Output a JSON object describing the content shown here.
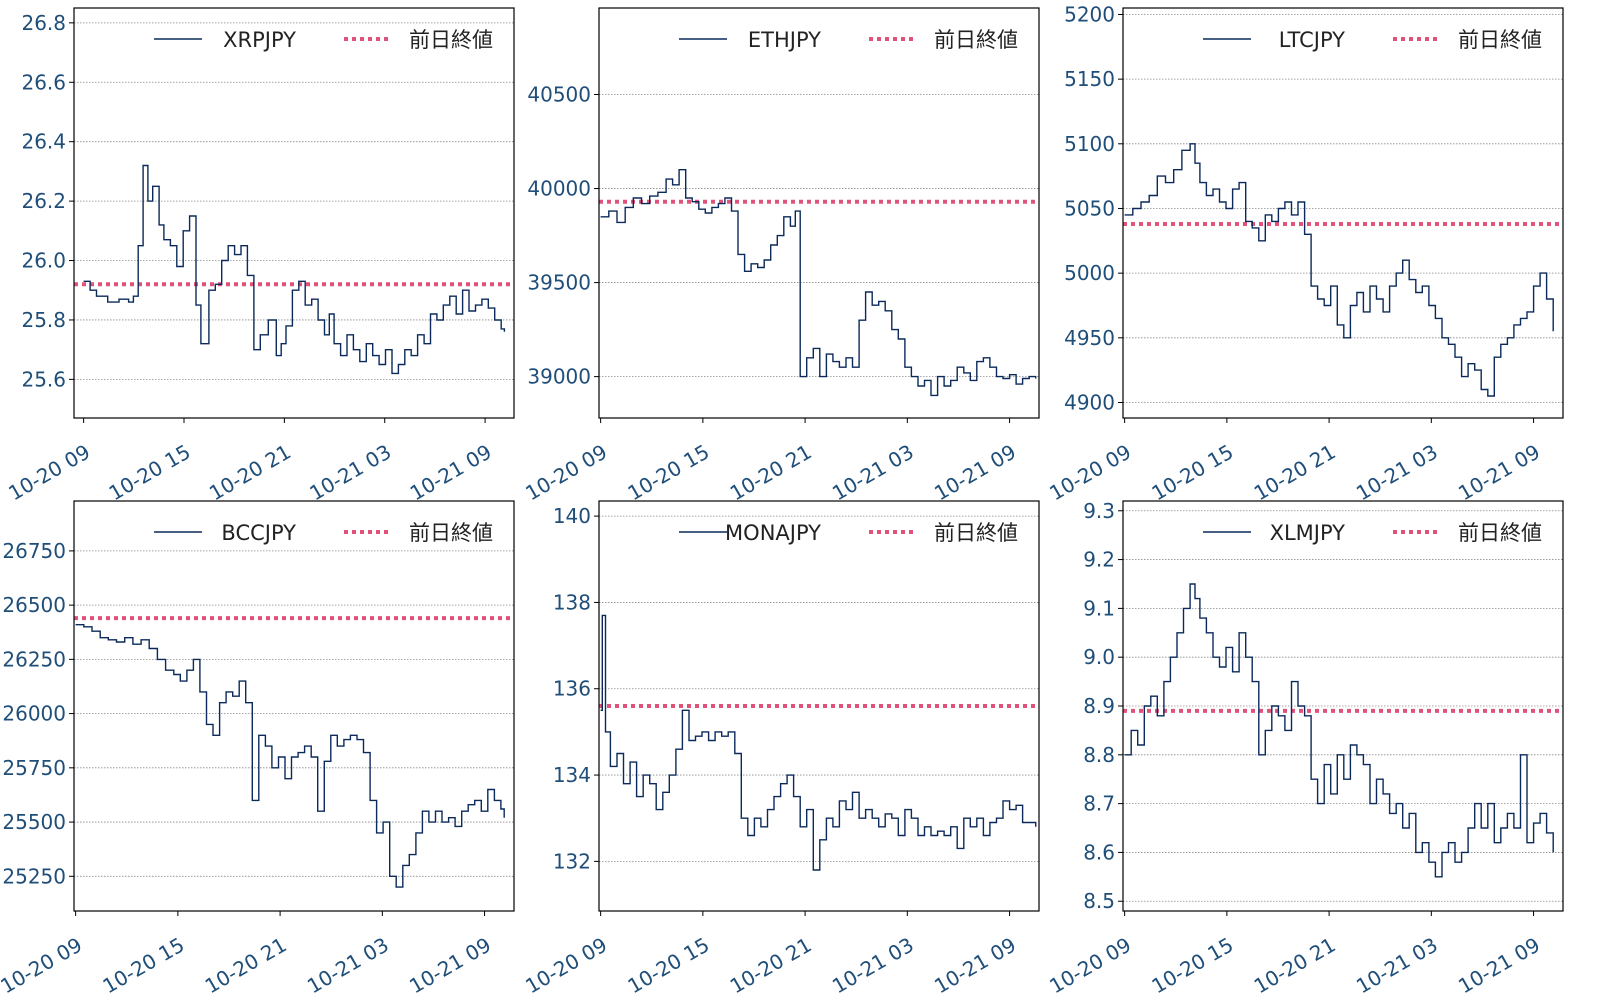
{
  "colors": {
    "series": "#0b2a5b",
    "reference": "#e0527a",
    "grid": "#8a8a8a",
    "tick_text": "#1f4e79",
    "axis": "#000000"
  },
  "chart_data": [
    {
      "type": "line",
      "legend_position": "top-right",
      "grid": "horizontal-dotted",
      "x_ticks": [
        "10-20 09",
        "10-20 15",
        "10-20 21",
        "10-21 03",
        "10-21 09"
      ],
      "xlim": [
        -0.6,
        26.8
      ],
      "ylim": [
        25.47,
        26.85
      ],
      "y_ticks": [
        "25.6",
        "25.8",
        "26.0",
        "26.2",
        "26.4",
        "26.6",
        "26.8"
      ],
      "y_tick_values": [
        25.6,
        25.8,
        26.0,
        26.2,
        26.4,
        26.6,
        26.8
      ],
      "series": [
        {
          "name": "XRPJPY",
          "style": "solid",
          "x": [
            0,
            0.4,
            0.8,
            1.5,
            2.2,
            2.8,
            3.1,
            3.4,
            3.7,
            4.0,
            4.3,
            4.7,
            5.0,
            5.4,
            5.8,
            6.2,
            6.6,
            7.0,
            7.3,
            7.8,
            8.2,
            8.6,
            9.0,
            9.4,
            9.8,
            10.2,
            10.6,
            11.0,
            11.5,
            12.0,
            12.3,
            12.6,
            13.0,
            13.4,
            13.8,
            14.2,
            14.6,
            15.0,
            15.3,
            15.6,
            16.0,
            16.4,
            16.8,
            17.2,
            17.6,
            18.0,
            18.4,
            18.8,
            19.2,
            19.6,
            20.0,
            20.4,
            20.8,
            21.2,
            21.6,
            22.0,
            22.4,
            22.8,
            23.2,
            23.6,
            24.0,
            24.4,
            24.8,
            25.2,
            25.6,
            26.0,
            26.2
          ],
          "y": [
            25.93,
            25.9,
            25.88,
            25.86,
            25.87,
            25.86,
            25.88,
            26.05,
            26.32,
            26.2,
            26.25,
            26.12,
            26.07,
            26.05,
            25.98,
            26.1,
            26.15,
            25.85,
            25.72,
            25.9,
            25.92,
            26.0,
            26.05,
            26.02,
            26.05,
            25.95,
            25.7,
            25.75,
            25.8,
            25.68,
            25.72,
            25.78,
            25.9,
            25.93,
            25.85,
            25.87,
            25.8,
            25.75,
            25.82,
            25.72,
            25.68,
            25.75,
            25.7,
            25.66,
            25.72,
            25.68,
            25.65,
            25.7,
            25.62,
            25.65,
            25.7,
            25.68,
            25.75,
            25.72,
            25.82,
            25.8,
            25.85,
            25.88,
            25.82,
            25.9,
            25.83,
            25.85,
            25.87,
            25.84,
            25.8,
            25.77,
            25.76
          ]
        },
        {
          "name": "前日終値",
          "style": "dotted",
          "y": 25.92
        }
      ]
    },
    {
      "type": "line",
      "legend_position": "top-right",
      "grid": "horizontal-dotted",
      "x_ticks": [
        "10-20 09",
        "10-20 15",
        "10-20 21",
        "10-21 03",
        "10-21 09"
      ],
      "xlim": [
        -0.1,
        26.8
      ],
      "ylim": [
        38780,
        40960
      ],
      "y_ticks": [
        "39000",
        "39500",
        "40000",
        "40500"
      ],
      "y_tick_values": [
        39000,
        39500,
        40000,
        40500
      ],
      "series": [
        {
          "name": "ETHJPY",
          "style": "solid",
          "x": [
            0,
            0.5,
            1.0,
            1.5,
            2.0,
            2.5,
            3.0,
            3.5,
            4.0,
            4.4,
            4.8,
            5.2,
            5.6,
            6.0,
            6.4,
            6.8,
            7.2,
            7.6,
            8.0,
            8.4,
            8.8,
            9.2,
            9.6,
            10.0,
            10.4,
            10.8,
            11.2,
            11.6,
            11.9,
            12.2,
            12.6,
            13.0,
            13.4,
            13.8,
            14.2,
            14.6,
            15.0,
            15.4,
            15.8,
            16.2,
            16.6,
            17.0,
            17.4,
            17.8,
            18.2,
            18.6,
            19.0,
            19.4,
            19.8,
            20.2,
            20.6,
            21.0,
            21.4,
            21.8,
            22.2,
            22.6,
            23.0,
            23.4,
            23.8,
            24.2,
            24.6,
            25.0,
            25.4,
            25.8,
            26.2,
            26.6
          ],
          "y": [
            39850,
            39880,
            39820,
            39900,
            39950,
            39920,
            39960,
            39980,
            40050,
            40020,
            40100,
            39950,
            39930,
            39890,
            39870,
            39900,
            39920,
            39950,
            39880,
            39650,
            39560,
            39600,
            39580,
            39620,
            39700,
            39750,
            39850,
            39800,
            39880,
            39000,
            39100,
            39150,
            39000,
            39120,
            39080,
            39050,
            39100,
            39050,
            39300,
            39450,
            39380,
            39400,
            39350,
            39250,
            39200,
            39050,
            39000,
            38950,
            38980,
            38900,
            39000,
            38950,
            38980,
            39050,
            39020,
            38980,
            39080,
            39100,
            39050,
            39000,
            38990,
            39010,
            38960,
            38990,
            39000,
            38990
          ]
        },
        {
          "name": "前日終値",
          "style": "dotted",
          "y": 39930
        }
      ]
    },
    {
      "type": "line",
      "legend_position": "top-right",
      "grid": "horizontal-dotted",
      "x_ticks": [
        "10-20 09",
        "10-20 15",
        "10-20 21",
        "10-21 03",
        "10-21 09"
      ],
      "xlim": [
        -0.1,
        26.8
      ],
      "ylim": [
        4888,
        5205
      ],
      "y_ticks": [
        "4900",
        "4950",
        "5000",
        "5050",
        "5100",
        "5150",
        "5200"
      ],
      "y_tick_values": [
        4900,
        4950,
        5000,
        5050,
        5100,
        5150,
        5200
      ],
      "series": [
        {
          "name": "LTCJPY",
          "style": "solid",
          "x": [
            0,
            0.5,
            1.0,
            1.5,
            2.0,
            2.5,
            3.0,
            3.5,
            4.0,
            4.3,
            4.6,
            5.0,
            5.4,
            5.8,
            6.2,
            6.6,
            7.0,
            7.4,
            7.8,
            8.2,
            8.6,
            9.0,
            9.4,
            9.8,
            10.2,
            10.6,
            11.0,
            11.4,
            11.8,
            12.2,
            12.6,
            13.0,
            13.4,
            13.8,
            14.2,
            14.6,
            15.0,
            15.4,
            15.8,
            16.2,
            16.6,
            17.0,
            17.4,
            17.8,
            18.2,
            18.6,
            19.0,
            19.4,
            19.8,
            20.2,
            20.6,
            21.0,
            21.4,
            21.8,
            22.2,
            22.6,
            23.0,
            23.4,
            23.8,
            24.2,
            24.6,
            25.0,
            25.4,
            25.8,
            26.2
          ],
          "y": [
            5045,
            5050,
            5055,
            5060,
            5075,
            5070,
            5080,
            5095,
            5100,
            5085,
            5070,
            5060,
            5065,
            5055,
            5050,
            5065,
            5070,
            5040,
            5035,
            5025,
            5045,
            5040,
            5050,
            5055,
            5045,
            5055,
            5030,
            4990,
            4980,
            4975,
            4990,
            4960,
            4950,
            4975,
            4985,
            4970,
            4990,
            4980,
            4970,
            4990,
            5000,
            5010,
            4995,
            4985,
            4990,
            4975,
            4965,
            4950,
            4945,
            4935,
            4920,
            4930,
            4925,
            4910,
            4905,
            4935,
            4945,
            4950,
            4960,
            4965,
            4970,
            4990,
            5000,
            4980,
            4955
          ]
        },
        {
          "name": "前日終値",
          "style": "dotted",
          "y": 5038
        }
      ]
    },
    {
      "type": "line",
      "legend_position": "top-right",
      "grid": "horizontal-dotted",
      "x_ticks": [
        "10-20 09",
        "10-20 15",
        "10-20 21",
        "10-21 03",
        "10-21 09"
      ],
      "xlim": [
        -0.1,
        26.8
      ],
      "ylim": [
        25090,
        26980
      ],
      "y_ticks": [
        "25250",
        "25500",
        "25750",
        "26000",
        "26250",
        "26500",
        "26750"
      ],
      "y_tick_values": [
        25250,
        25500,
        25750,
        26000,
        26250,
        26500,
        26750
      ],
      "series": [
        {
          "name": "BCCJPY",
          "style": "solid",
          "x": [
            0,
            0.5,
            1.0,
            1.5,
            2.0,
            2.5,
            3.0,
            3.5,
            4.0,
            4.5,
            5.0,
            5.5,
            6.0,
            6.4,
            6.8,
            7.2,
            7.6,
            8.0,
            8.4,
            8.8,
            9.2,
            9.6,
            10.0,
            10.4,
            10.8,
            11.2,
            11.6,
            12.0,
            12.4,
            12.8,
            13.2,
            13.6,
            14.0,
            14.4,
            14.8,
            15.2,
            15.6,
            16.0,
            16.4,
            16.8,
            17.2,
            17.6,
            18.0,
            18.4,
            18.8,
            19.2,
            19.6,
            20.0,
            20.4,
            20.8,
            21.2,
            21.6,
            22.0,
            22.4,
            22.8,
            23.2,
            23.6,
            24.0,
            24.4,
            24.8,
            25.2,
            25.6,
            26.0,
            26.2
          ],
          "y": [
            26410,
            26400,
            26380,
            26350,
            26340,
            26330,
            26350,
            26320,
            26340,
            26300,
            26250,
            26200,
            26180,
            26150,
            26200,
            26250,
            26100,
            25950,
            25900,
            26050,
            26100,
            26080,
            26150,
            26050,
            25600,
            25900,
            25850,
            25750,
            25800,
            25700,
            25800,
            25820,
            25850,
            25800,
            25550,
            25780,
            25900,
            25850,
            25880,
            25900,
            25880,
            25820,
            25600,
            25450,
            25500,
            25250,
            25200,
            25300,
            25350,
            25450,
            25550,
            25500,
            25550,
            25500,
            25520,
            25480,
            25550,
            25580,
            25600,
            25550,
            25650,
            25600,
            25560,
            25520
          ]
        },
        {
          "name": "前日終値",
          "style": "dotted",
          "y": 26440
        }
      ]
    },
    {
      "type": "line",
      "legend_position": "top-right",
      "grid": "horizontal-dotted",
      "x_ticks": [
        "10-20 09",
        "10-20 15",
        "10-20 21",
        "10-21 03",
        "10-21 09"
      ],
      "xlim": [
        -0.1,
        26.8
      ],
      "ylim": [
        130.85,
        140.35
      ],
      "y_ticks": [
        "132",
        "134",
        "136",
        "138",
        "140"
      ],
      "y_tick_values": [
        132,
        134,
        136,
        138,
        140
      ],
      "series": [
        {
          "name": "MONAJPY",
          "style": "solid",
          "x": [
            0,
            0.1,
            0.3,
            0.6,
            1.0,
            1.4,
            1.8,
            2.2,
            2.6,
            3.0,
            3.4,
            3.8,
            4.2,
            4.6,
            5.0,
            5.4,
            5.8,
            6.2,
            6.6,
            7.0,
            7.4,
            7.8,
            8.2,
            8.6,
            9.0,
            9.4,
            9.8,
            10.2,
            10.6,
            11.0,
            11.4,
            11.8,
            12.2,
            12.6,
            13.0,
            13.4,
            13.8,
            14.2,
            14.6,
            15.0,
            15.4,
            15.8,
            16.2,
            16.6,
            17.0,
            17.4,
            17.8,
            18.2,
            18.6,
            19.0,
            19.4,
            19.8,
            20.2,
            20.6,
            21.0,
            21.4,
            21.8,
            22.2,
            22.6,
            23.0,
            23.4,
            23.8,
            24.2,
            24.6,
            25.0,
            25.4,
            25.8,
            26.2,
            26.6
          ],
          "y": [
            135.5,
            137.7,
            135.0,
            134.2,
            134.5,
            133.8,
            134.3,
            133.5,
            134.0,
            133.8,
            133.2,
            133.6,
            134.0,
            134.6,
            135.5,
            134.8,
            134.9,
            135.0,
            134.8,
            135.0,
            134.9,
            135.0,
            134.5,
            133.0,
            132.6,
            133.0,
            132.8,
            133.2,
            133.5,
            133.8,
            134.0,
            133.5,
            132.8,
            133.2,
            131.8,
            132.5,
            133.0,
            132.8,
            133.4,
            133.2,
            133.6,
            133.0,
            133.2,
            133.0,
            132.8,
            133.1,
            133.0,
            132.6,
            133.2,
            133.0,
            132.6,
            132.8,
            132.6,
            132.7,
            132.6,
            132.8,
            132.3,
            133.0,
            132.8,
            133.0,
            132.6,
            132.9,
            133.0,
            133.4,
            133.2,
            133.3,
            132.9,
            132.9,
            132.8
          ]
        },
        {
          "name": "前日終値",
          "style": "dotted",
          "y": 135.6
        }
      ]
    },
    {
      "type": "line",
      "legend_position": "top-right",
      "grid": "horizontal-dotted",
      "x_ticks": [
        "10-20 09",
        "10-20 15",
        "10-20 21",
        "10-21 03",
        "10-21 09"
      ],
      "xlim": [
        -0.1,
        26.8
      ],
      "ylim": [
        8.48,
        9.32
      ],
      "y_ticks": [
        "8.5",
        "8.6",
        "8.7",
        "8.8",
        "8.9",
        "9.0",
        "9.1",
        "9.2",
        "9.3"
      ],
      "y_tick_values": [
        8.5,
        8.6,
        8.7,
        8.8,
        8.9,
        9.0,
        9.1,
        9.2,
        9.3
      ],
      "series": [
        {
          "name": "XLMJPY",
          "style": "solid",
          "x": [
            0,
            0.4,
            0.8,
            1.2,
            1.6,
            2.0,
            2.4,
            2.8,
            3.2,
            3.6,
            4.0,
            4.3,
            4.6,
            5.0,
            5.4,
            5.8,
            6.2,
            6.6,
            7.0,
            7.4,
            7.8,
            8.2,
            8.6,
            9.0,
            9.4,
            9.8,
            10.2,
            10.6,
            11.0,
            11.4,
            11.8,
            12.2,
            12.6,
            13.0,
            13.4,
            13.8,
            14.2,
            14.6,
            15.0,
            15.4,
            15.8,
            16.2,
            16.6,
            17.0,
            17.4,
            17.8,
            18.2,
            18.6,
            19.0,
            19.4,
            19.8,
            20.2,
            20.6,
            21.0,
            21.4,
            21.8,
            22.2,
            22.6,
            23.0,
            23.4,
            23.8,
            24.2,
            24.6,
            25.0,
            25.4,
            25.8,
            26.2
          ],
          "y": [
            8.8,
            8.85,
            8.82,
            8.9,
            8.92,
            8.88,
            8.95,
            9.0,
            9.05,
            9.1,
            9.15,
            9.12,
            9.08,
            9.05,
            9.0,
            8.98,
            9.02,
            8.97,
            9.05,
            9.0,
            8.95,
            8.8,
            8.85,
            8.9,
            8.88,
            8.85,
            8.95,
            8.9,
            8.88,
            8.75,
            8.7,
            8.78,
            8.72,
            8.8,
            8.75,
            8.82,
            8.8,
            8.78,
            8.7,
            8.75,
            8.72,
            8.68,
            8.7,
            8.65,
            8.68,
            8.6,
            8.62,
            8.58,
            8.55,
            8.6,
            8.62,
            8.58,
            8.6,
            8.65,
            8.7,
            8.65,
            8.7,
            8.62,
            8.65,
            8.68,
            8.65,
            8.8,
            8.62,
            8.66,
            8.68,
            8.64,
            8.6
          ]
        },
        {
          "name": "前日終値",
          "style": "dotted",
          "y": 8.89
        }
      ]
    }
  ]
}
